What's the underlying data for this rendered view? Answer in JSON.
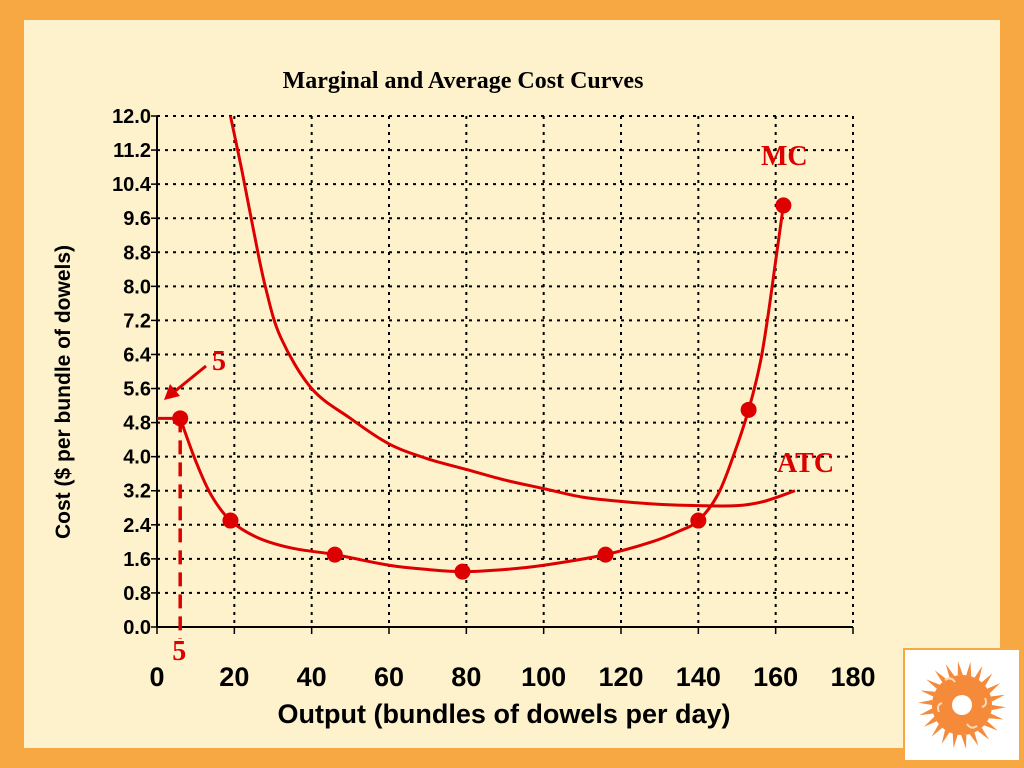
{
  "chart_data": {
    "type": "line",
    "title": "Marginal and Average Cost Curves",
    "xlabel": "Output (bundles of dowels per day)",
    "ylabel": "Cost ($ per bundle of dowels)",
    "xlim": [
      0,
      180
    ],
    "ylim": [
      0,
      12.0
    ],
    "x_ticks": [
      "0",
      "20",
      "40",
      "60",
      "80",
      "100",
      "120",
      "140",
      "160",
      "180"
    ],
    "y_ticks": [
      "0.0",
      "0.8",
      "1.6",
      "2.4",
      "3.2",
      "4.0",
      "4.8",
      "5.6",
      "6.4",
      "7.2",
      "8.0",
      "8.8",
      "9.6",
      "10.4",
      "11.2",
      "12.0"
    ],
    "grid": true,
    "series": [
      {
        "name": "MC",
        "color": "#dd0000",
        "markers": [
          [
            6,
            4.9
          ],
          [
            19,
            2.5
          ],
          [
            46,
            1.7
          ],
          [
            79,
            1.3
          ],
          [
            116,
            1.7
          ],
          [
            140,
            2.5
          ],
          [
            153,
            5.1
          ],
          [
            162,
            9.9
          ]
        ],
        "curve": [
          [
            6,
            4.9
          ],
          [
            10,
            3.9
          ],
          [
            14,
            3.1
          ],
          [
            19,
            2.5
          ],
          [
            26,
            2.1
          ],
          [
            35,
            1.85
          ],
          [
            46,
            1.7
          ],
          [
            60,
            1.45
          ],
          [
            70,
            1.35
          ],
          [
            79,
            1.3
          ],
          [
            90,
            1.35
          ],
          [
            100,
            1.45
          ],
          [
            116,
            1.7
          ],
          [
            128,
            2.0
          ],
          [
            135,
            2.25
          ],
          [
            140,
            2.5
          ],
          [
            145,
            3.1
          ],
          [
            149,
            4.0
          ],
          [
            153,
            5.1
          ],
          [
            156,
            6.2
          ],
          [
            158,
            7.3
          ],
          [
            160,
            8.6
          ],
          [
            162,
            9.9
          ]
        ]
      },
      {
        "name": "ATC",
        "color": "#dd0000",
        "markers": [],
        "curve": [
          [
            19,
            12.0
          ],
          [
            22,
            10.7
          ],
          [
            25,
            9.3
          ],
          [
            28,
            8.0
          ],
          [
            32,
            6.8
          ],
          [
            40,
            5.6
          ],
          [
            50,
            4.9
          ],
          [
            60,
            4.3
          ],
          [
            70,
            3.95
          ],
          [
            80,
            3.7
          ],
          [
            90,
            3.45
          ],
          [
            100,
            3.25
          ],
          [
            110,
            3.05
          ],
          [
            120,
            2.95
          ],
          [
            130,
            2.88
          ],
          [
            140,
            2.85
          ],
          [
            150,
            2.85
          ],
          [
            157,
            2.95
          ],
          [
            165,
            3.2
          ]
        ]
      }
    ],
    "annotations": [
      {
        "text": "5",
        "target": "y-axis",
        "value": 4.9
      },
      {
        "text": "5",
        "target": "x-axis",
        "value": 6
      }
    ]
  },
  "logo": {
    "icon": "saw-blade-icon",
    "color": "#f58a3a"
  }
}
